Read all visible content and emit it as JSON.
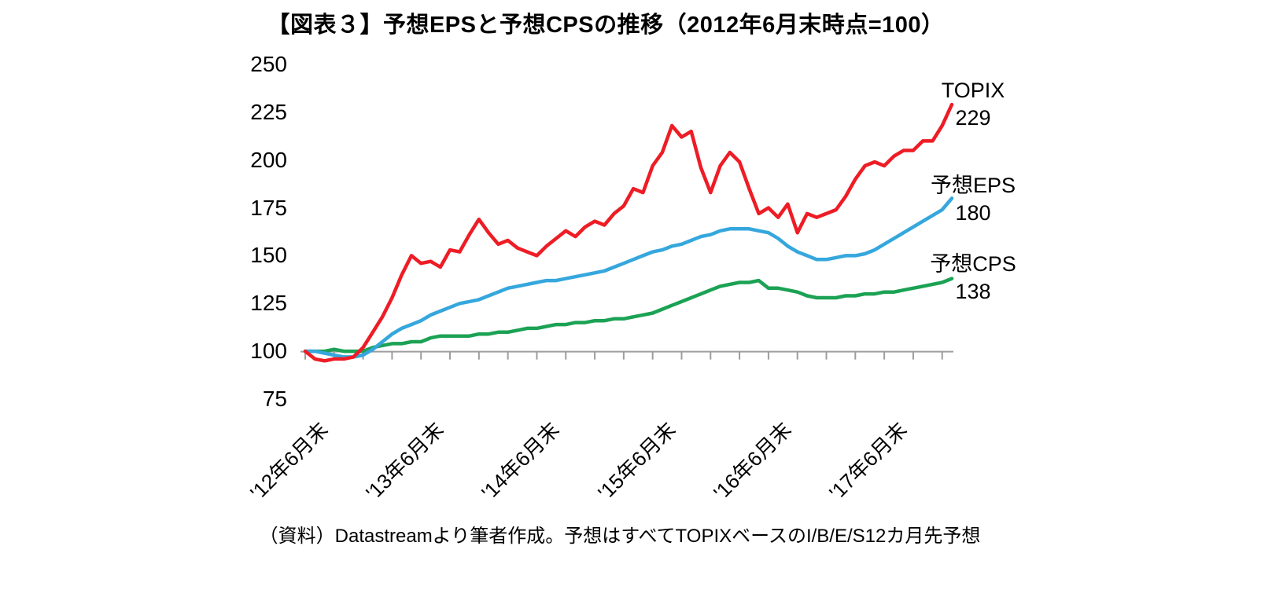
{
  "title": "【図表３】予想EPSと予想CPSの推移（2012年6月末時点=100）",
  "source_note": "（資料）Datastreamより筆者作成。予想はすべてTOPIXベースのI/B/E/S12カ月先予想",
  "chart_data": {
    "type": "line",
    "title": "予想EPSと予想CPSの推移（2012年6月末時点=100）",
    "x_start": "2012-06",
    "x_interval": "monthly",
    "x_tick_labels": [
      "'12年6月末",
      "'13年6月末",
      "'14年6月末",
      "'15年6月末",
      "'16年6月末",
      "'17年6月末"
    ],
    "x_tick_months": [
      0,
      12,
      24,
      36,
      48,
      60
    ],
    "y_ticks": [
      250,
      225,
      200,
      175,
      150,
      125,
      100,
      75
    ],
    "ylim": [
      75,
      250
    ],
    "baseline": 100,
    "grid": false,
    "legend_position": "right-end-labels",
    "axis_color": "#9d9d9d",
    "series": [
      {
        "name": "TOPIX",
        "color": "#ee1c25",
        "end_value": "229",
        "values": [
          100,
          96,
          95,
          96,
          96,
          97,
          102,
          110,
          118,
          128,
          140,
          150,
          146,
          147,
          144,
          153,
          152,
          161,
          169,
          162,
          156,
          158,
          154,
          152,
          150,
          155,
          159,
          163,
          160,
          165,
          168,
          166,
          172,
          176,
          185,
          183,
          197,
          204,
          218,
          212,
          215,
          196,
          183,
          197,
          204,
          199,
          185,
          172,
          175,
          170,
          177,
          162,
          172,
          170,
          172,
          174,
          181,
          190,
          197,
          199,
          197,
          202,
          205,
          205,
          210,
          210,
          218,
          229
        ]
      },
      {
        "name": "予想EPS",
        "color": "#35a7dd",
        "end_value": "180",
        "values": [
          100,
          100,
          99,
          98,
          97,
          97,
          98,
          101,
          105,
          109,
          112,
          114,
          116,
          119,
          121,
          123,
          125,
          126,
          127,
          129,
          131,
          133,
          134,
          135,
          136,
          137,
          137,
          138,
          139,
          140,
          141,
          142,
          144,
          146,
          148,
          150,
          152,
          153,
          155,
          156,
          158,
          160,
          161,
          163,
          164,
          164,
          164,
          163,
          162,
          159,
          155,
          152,
          150,
          148,
          148,
          149,
          150,
          150,
          151,
          153,
          156,
          159,
          162,
          165,
          168,
          171,
          174,
          180
        ]
      },
      {
        "name": "予想CPS",
        "color": "#1ba254",
        "end_value": "138",
        "values": [
          100,
          100,
          100,
          101,
          100,
          100,
          100,
          102,
          103,
          104,
          104,
          105,
          105,
          107,
          108,
          108,
          108,
          108,
          109,
          109,
          110,
          110,
          111,
          112,
          112,
          113,
          114,
          114,
          115,
          115,
          116,
          116,
          117,
          117,
          118,
          119,
          120,
          122,
          124,
          126,
          128,
          130,
          132,
          134,
          135,
          136,
          136,
          137,
          133,
          133,
          132,
          131,
          129,
          128,
          128,
          128,
          129,
          129,
          130,
          130,
          131,
          131,
          132,
          133,
          134,
          135,
          136,
          138
        ]
      }
    ]
  }
}
